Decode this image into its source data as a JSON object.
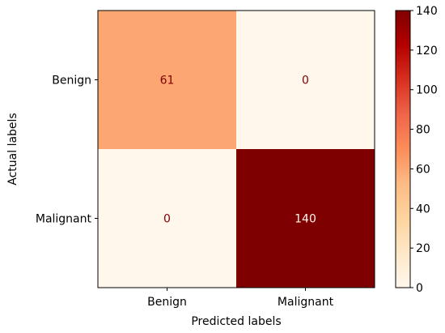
{
  "chart_data": {
    "type": "heatmap",
    "title": "",
    "xlabel": "Predicted labels",
    "ylabel": "Actual labels",
    "x_categories": [
      "Benign",
      "Malignant"
    ],
    "y_categories": [
      "Benign",
      "Malignant"
    ],
    "values": [
      [
        61,
        0
      ],
      [
        0,
        140
      ]
    ],
    "colormap": "OrRd",
    "colorbar": {
      "min": 0,
      "max": 140,
      "ticks": [
        0,
        20,
        40,
        60,
        80,
        100,
        120,
        140
      ],
      "colors": [
        "#fff7ec",
        "#fee8c8",
        "#fdd49e",
        "#fdbb84",
        "#fc8d59",
        "#ef6548",
        "#d7301f",
        "#b30000",
        "#7f0000"
      ]
    },
    "cell_colors": [
      [
        "#fca771",
        "#fff7ec"
      ],
      [
        "#fff7ec",
        "#7f0000"
      ]
    ],
    "text_colors": {
      "light_bg": "#7f0000",
      "dark_bg": "#fff7ec"
    }
  }
}
